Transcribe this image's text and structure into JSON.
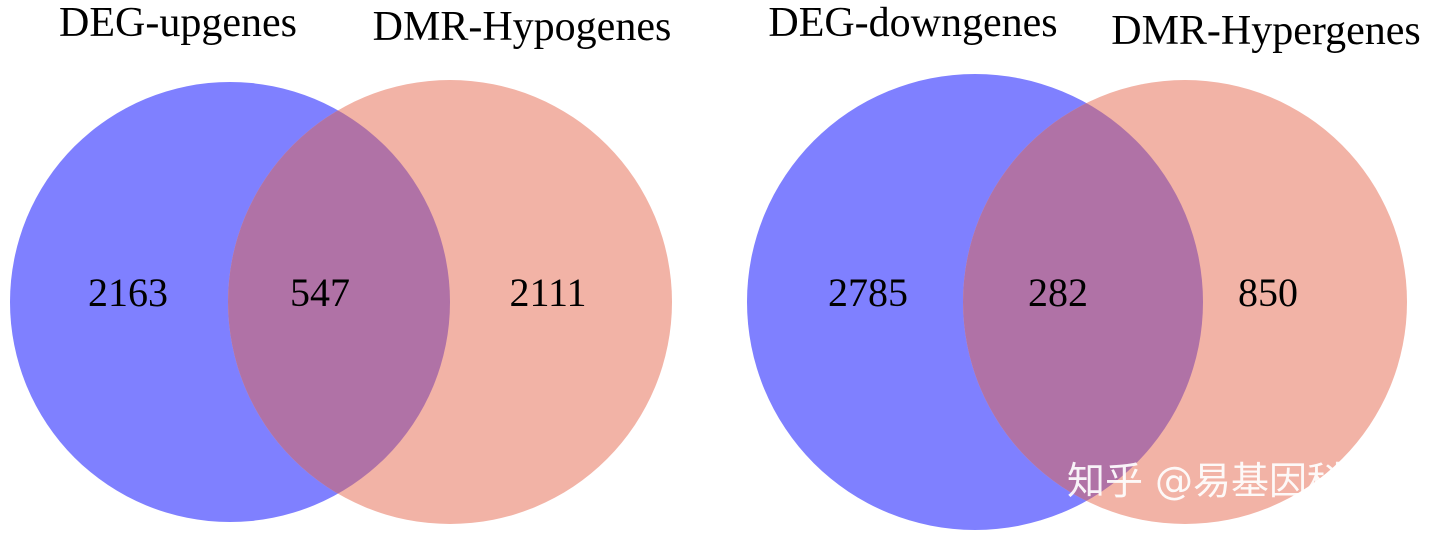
{
  "diagrams": [
    {
      "left_set": {
        "label": "DEG-upgenes",
        "only_count": "2163"
      },
      "right_set": {
        "label": "DMR-Hypogenes",
        "only_count": "2111"
      },
      "intersection_count": "547"
    },
    {
      "left_set": {
        "label": "DEG-downgenes",
        "only_count": "2785"
      },
      "right_set": {
        "label": "DMR-Hypergenes",
        "only_count": "850"
      },
      "intersection_count": "282"
    }
  ],
  "colors": {
    "left_circle": "#7f80ff",
    "right_circle": "#f2b3a6",
    "overlap": "#b072a6"
  },
  "watermark": "知乎 @易基因科技"
}
